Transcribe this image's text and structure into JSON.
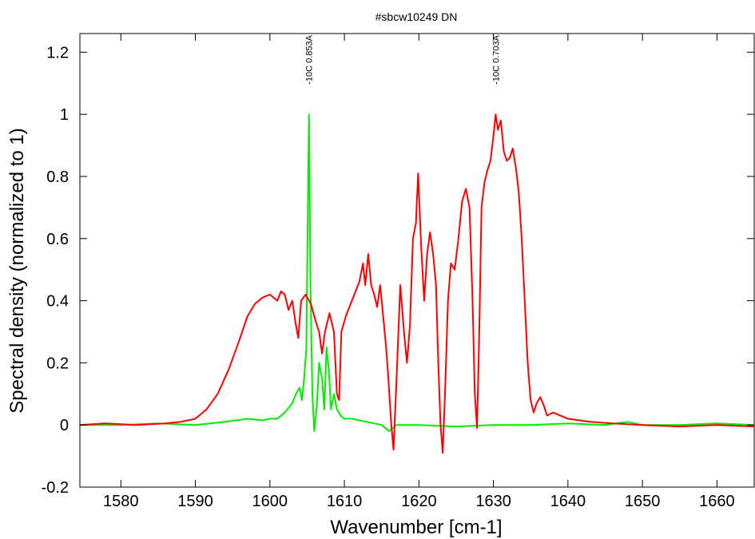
{
  "chart_data": {
    "type": "line",
    "title": "#sbcw10249 DN",
    "xlabel": "Wavenumber [cm-1]",
    "ylabel": "Spectral density (normalized to 1)",
    "xlim": [
      1574.5,
      1665
    ],
    "ylim": [
      -0.2,
      1.26
    ],
    "x_ticks": [
      1580,
      1590,
      1600,
      1610,
      1620,
      1630,
      1640,
      1650,
      1660
    ],
    "y_ticks": [
      -0.2,
      0,
      0.2,
      0.4,
      0.6,
      0.8,
      1,
      1.2
    ],
    "y_tick_labels": [
      "-0.2",
      "0",
      "0.2",
      "0.4",
      "0.6",
      "0.8",
      "1",
      "1.2"
    ],
    "grid": false,
    "legend": "none",
    "annotations": [
      {
        "x": 1605.2,
        "text": "-10C 0.853A"
      },
      {
        "x": 1630.3,
        "text": "-10C 0.703A"
      }
    ],
    "series": [
      {
        "color": "#ff0000",
        "points": [
          [
            1574.5,
            0.0
          ],
          [
            1578,
            0.005
          ],
          [
            1582,
            0.0
          ],
          [
            1586,
            0.005
          ],
          [
            1588,
            0.01
          ],
          [
            1590,
            0.02
          ],
          [
            1591.5,
            0.05
          ],
          [
            1593,
            0.1
          ],
          [
            1594.5,
            0.18
          ],
          [
            1596,
            0.28
          ],
          [
            1597,
            0.35
          ],
          [
            1598,
            0.39
          ],
          [
            1599,
            0.41
          ],
          [
            1600,
            0.42
          ],
          [
            1601,
            0.4
          ],
          [
            1601.5,
            0.43
          ],
          [
            1602,
            0.42
          ],
          [
            1602.5,
            0.37
          ],
          [
            1603,
            0.4
          ],
          [
            1603.5,
            0.32
          ],
          [
            1603.8,
            0.28
          ],
          [
            1604.2,
            0.4
          ],
          [
            1604.8,
            0.42
          ],
          [
            1605.5,
            0.39
          ],
          [
            1606.2,
            0.33
          ],
          [
            1606.6,
            0.3
          ],
          [
            1607,
            0.23
          ],
          [
            1607.4,
            0.3
          ],
          [
            1608,
            0.36
          ],
          [
            1608.6,
            0.3
          ],
          [
            1609,
            0.1
          ],
          [
            1609.3,
            0.08
          ],
          [
            1609.6,
            0.3
          ],
          [
            1610.2,
            0.35
          ],
          [
            1611,
            0.4
          ],
          [
            1611.5,
            0.43
          ],
          [
            1612,
            0.46
          ],
          [
            1612.5,
            0.52
          ],
          [
            1612.8,
            0.45
          ],
          [
            1613.2,
            0.55
          ],
          [
            1613.6,
            0.45
          ],
          [
            1614,
            0.42
          ],
          [
            1614.4,
            0.38
          ],
          [
            1614.8,
            0.45
          ],
          [
            1615.2,
            0.35
          ],
          [
            1615.6,
            0.25
          ],
          [
            1615.9,
            0.15
          ],
          [
            1616.3,
            0.0
          ],
          [
            1616.6,
            -0.08
          ],
          [
            1617,
            0.15
          ],
          [
            1617.5,
            0.45
          ],
          [
            1618,
            0.3
          ],
          [
            1618.4,
            0.2
          ],
          [
            1618.8,
            0.32
          ],
          [
            1619.2,
            0.6
          ],
          [
            1619.6,
            0.65
          ],
          [
            1619.9,
            0.81
          ],
          [
            1620.3,
            0.58
          ],
          [
            1620.7,
            0.4
          ],
          [
            1621.1,
            0.55
          ],
          [
            1621.5,
            0.62
          ],
          [
            1621.9,
            0.55
          ],
          [
            1622.3,
            0.45
          ],
          [
            1622.6,
            0.2
          ],
          [
            1622.9,
            0.0
          ],
          [
            1623.2,
            -0.09
          ],
          [
            1623.5,
            0.1
          ],
          [
            1623.9,
            0.4
          ],
          [
            1624.3,
            0.52
          ],
          [
            1624.8,
            0.5
          ],
          [
            1625.3,
            0.6
          ],
          [
            1625.8,
            0.72
          ],
          [
            1626.3,
            0.76
          ],
          [
            1626.8,
            0.7
          ],
          [
            1627.2,
            0.4
          ],
          [
            1627.5,
            0.1
          ],
          [
            1627.8,
            -0.01
          ],
          [
            1628.1,
            0.3
          ],
          [
            1628.4,
            0.7
          ],
          [
            1628.8,
            0.78
          ],
          [
            1629.2,
            0.82
          ],
          [
            1629.6,
            0.85
          ],
          [
            1630,
            0.93
          ],
          [
            1630.3,
            1.0
          ],
          [
            1630.6,
            0.95
          ],
          [
            1631,
            0.98
          ],
          [
            1631.4,
            0.88
          ],
          [
            1631.8,
            0.85
          ],
          [
            1632.2,
            0.86
          ],
          [
            1632.6,
            0.89
          ],
          [
            1633,
            0.83
          ],
          [
            1633.4,
            0.75
          ],
          [
            1633.8,
            0.6
          ],
          [
            1634.2,
            0.4
          ],
          [
            1634.6,
            0.2
          ],
          [
            1635,
            0.08
          ],
          [
            1635.4,
            0.04
          ],
          [
            1635.8,
            0.07
          ],
          [
            1636.3,
            0.09
          ],
          [
            1636.8,
            0.06
          ],
          [
            1637.2,
            0.03
          ],
          [
            1638,
            0.04
          ],
          [
            1640,
            0.02
          ],
          [
            1643,
            0.01
          ],
          [
            1646,
            0.005
          ],
          [
            1650,
            0.0
          ],
          [
            1655,
            -0.005
          ],
          [
            1660,
            0.0
          ],
          [
            1665,
            -0.005
          ]
        ]
      },
      {
        "color": "#00ee00",
        "points": [
          [
            1574.5,
            0.0
          ],
          [
            1580,
            0.0
          ],
          [
            1585,
            0.005
          ],
          [
            1590,
            0.0
          ],
          [
            1594,
            0.01
          ],
          [
            1597,
            0.02
          ],
          [
            1599,
            0.015
          ],
          [
            1600,
            0.02
          ],
          [
            1601,
            0.02
          ],
          [
            1602,
            0.04
          ],
          [
            1603,
            0.07
          ],
          [
            1603.5,
            0.1
          ],
          [
            1604,
            0.12
          ],
          [
            1604.3,
            0.08
          ],
          [
            1604.6,
            0.15
          ],
          [
            1604.9,
            0.25
          ],
          [
            1605.05,
            0.6
          ],
          [
            1605.25,
            1.0
          ],
          [
            1605.45,
            0.45
          ],
          [
            1605.7,
            0.1
          ],
          [
            1605.95,
            -0.02
          ],
          [
            1606.3,
            0.06
          ],
          [
            1606.6,
            0.2
          ],
          [
            1607,
            0.15
          ],
          [
            1607.3,
            0.05
          ],
          [
            1607.6,
            0.25
          ],
          [
            1607.9,
            0.18
          ],
          [
            1608.2,
            0.05
          ],
          [
            1608.6,
            0.1
          ],
          [
            1609,
            0.05
          ],
          [
            1609.5,
            0.03
          ],
          [
            1610,
            0.02
          ],
          [
            1611,
            0.02
          ],
          [
            1613,
            0.01
          ],
          [
            1615,
            0.0
          ],
          [
            1616,
            -0.02
          ],
          [
            1617,
            0.0
          ],
          [
            1620,
            0.0
          ],
          [
            1625,
            -0.005
          ],
          [
            1630,
            0.0
          ],
          [
            1635,
            0.0
          ],
          [
            1640,
            0.005
          ],
          [
            1645,
            0.0
          ],
          [
            1648,
            0.01
          ],
          [
            1650,
            0.0
          ],
          [
            1655,
            0.0
          ],
          [
            1660,
            0.005
          ],
          [
            1665,
            0.0
          ]
        ]
      }
    ]
  }
}
